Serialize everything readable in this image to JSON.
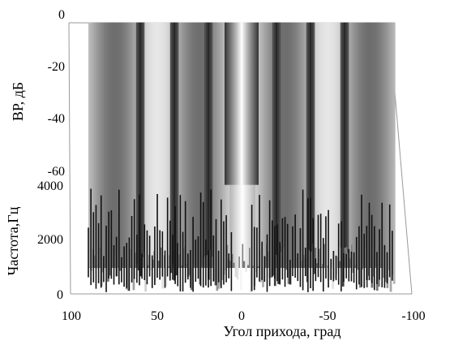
{
  "chart_data": {
    "type": "surface",
    "title": "",
    "xlabel": "Угол прихода, град",
    "ylabel": "Частота,Гц",
    "zlabel": "ВР, дБ",
    "x_ticks": [
      "100",
      "50",
      "0",
      "-50",
      "-100"
    ],
    "y_ticks": [
      "0",
      "2000",
      "4000"
    ],
    "z_ticks": [
      "0",
      "-20",
      "-40",
      "-60"
    ],
    "xlim": [
      100,
      -100
    ],
    "ylim": [
      0,
      5000
    ],
    "zlim": [
      -80,
      0
    ],
    "surface_x_range": [
      90,
      -90
    ],
    "main_lobe_angle": 0,
    "null_angles": [
      40,
      -40,
      60,
      -60,
      20,
      -20
    ],
    "colormap": "grayscale (black = low, white = high)",
    "grid": true
  }
}
